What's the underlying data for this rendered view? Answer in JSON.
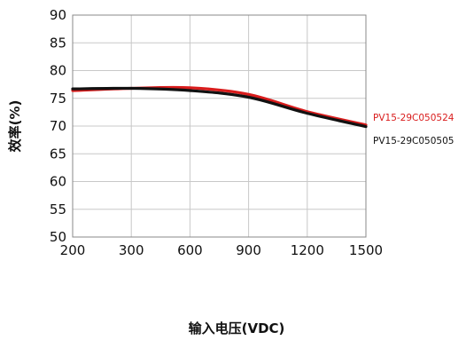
{
  "chart_data": {
    "type": "line",
    "xlabel": "输入电压(VDC)",
    "ylabel": "效率(%)",
    "x_ticks": [
      "200",
      "300",
      "600",
      "900",
      "1200",
      "1500"
    ],
    "y_ticks": [
      "50",
      "55",
      "60",
      "65",
      "70",
      "75",
      "80",
      "85",
      "90"
    ],
    "ylim": [
      50,
      90
    ],
    "grid": true,
    "legend_position": "right",
    "series": [
      {
        "name": "PV15-29C050524",
        "color": "#d91c1c",
        "x": [
          "200",
          "300",
          "600",
          "900",
          "1200",
          "1500"
        ],
        "values": [
          76.4,
          76.8,
          76.9,
          75.7,
          72.6,
          70.2
        ]
      },
      {
        "name": "PV15-29C050505",
        "color": "#111111",
        "x": [
          "200",
          "300",
          "600",
          "900",
          "1200",
          "1500"
        ],
        "values": [
          76.7,
          76.8,
          76.4,
          75.2,
          72.3,
          69.9
        ]
      }
    ]
  }
}
